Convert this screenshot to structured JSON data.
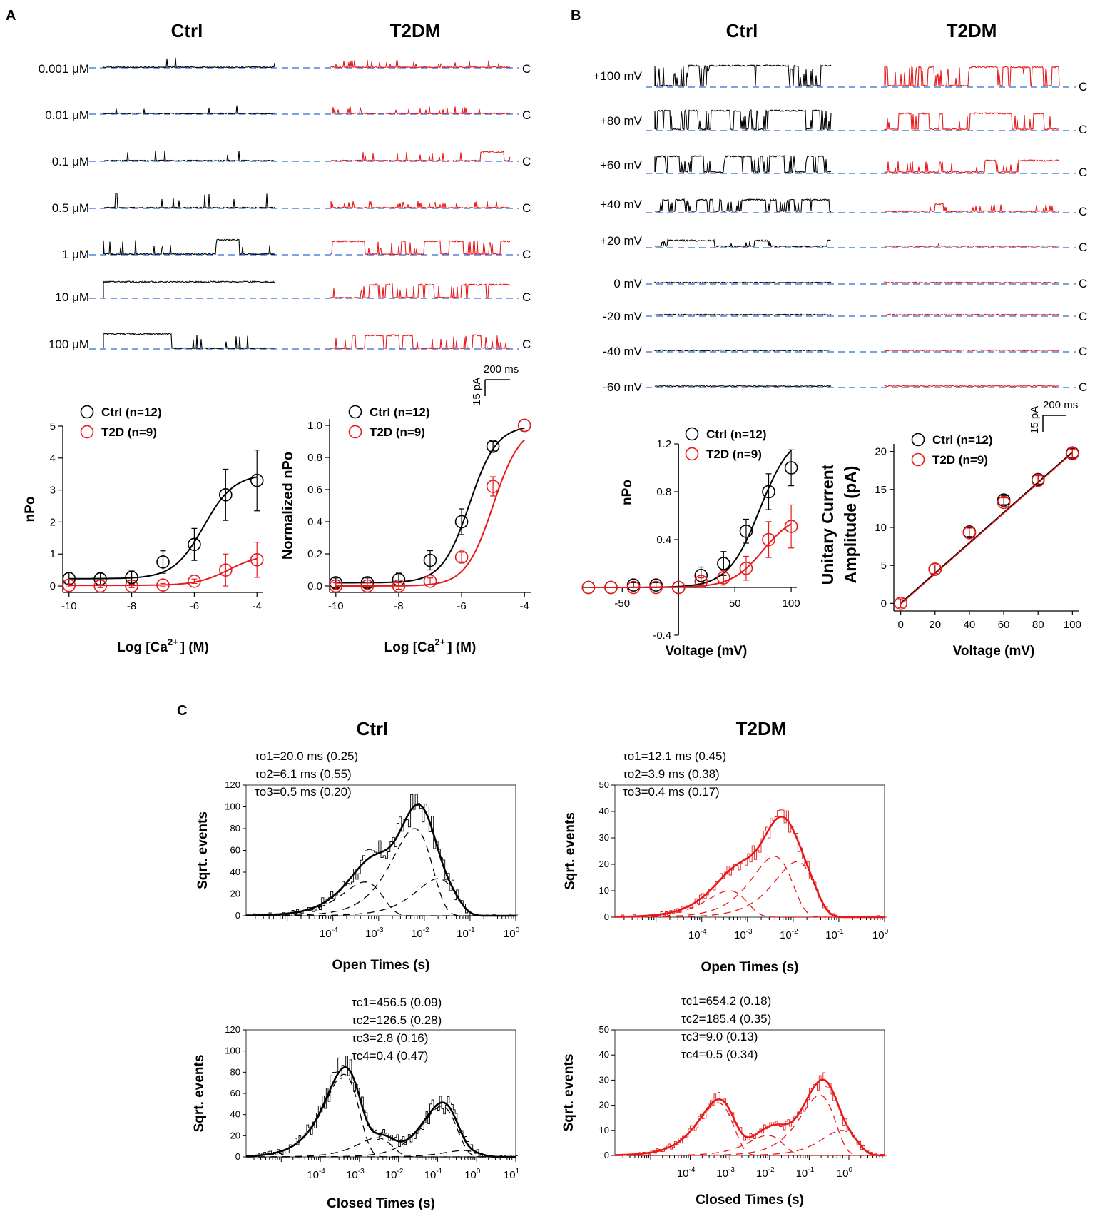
{
  "figure": {
    "panel_labels": [
      "A",
      "B",
      "C"
    ],
    "colors": {
      "ctrl": "#000000",
      "t2d": "#e8191b",
      "baseline": "#2f6ad8"
    },
    "closed_marker": "C"
  },
  "panelA": {
    "col_titles": [
      "Ctrl",
      "T2DM"
    ],
    "trace_labels": [
      "0.001  μM",
      "0.01  μM",
      "0.1  μM",
      "0.5  μM",
      "1  μM",
      "10  μM",
      "100  μM"
    ],
    "scale_bar": {
      "current": "15 pA",
      "time": "200 ms"
    }
  },
  "panelB": {
    "col_titles": [
      "Ctrl",
      "T2DM"
    ],
    "trace_labels": [
      "+100 mV",
      "+80 mV",
      "+60 mV",
      "+40 mV",
      "+20 mV",
      "0 mV",
      "-20 mV",
      "-40 mV",
      "-60 mV"
    ],
    "scale_bar": {
      "current": "15 pA",
      "time": "200 ms"
    }
  },
  "panelC": {
    "col_titles": [
      "Ctrl",
      "T2DM"
    ],
    "ctrl_open_fit": [
      "τo1=20.0 ms (0.25)",
      "τo2=6.1 ms (0.55)",
      "τo3=0.5 ms (0.20)"
    ],
    "t2d_open_fit": [
      "τo1=12.1 ms (0.45)",
      "τo2=3.9 ms (0.38)",
      "τo3=0.4 ms (0.17)"
    ],
    "ctrl_closed_fit": [
      "τc1=456.5 (0.09)",
      "τc2=126.5 (0.28)",
      "τc3=2.8 (0.16)",
      "τc4=0.4 (0.47)"
    ],
    "t2d_closed_fit": [
      "τc1=654.2 (0.18)",
      "τc2=185.4 (0.35)",
      "τc3=9.0 (0.13)",
      "τc4=0.5 (0.34)"
    ]
  },
  "chart_data": [
    {
      "id": "A-nPo",
      "type": "scatter",
      "xlabel": "Log [Ca2+] (M)",
      "xlabel_main": "Log [Ca",
      "xlabel_sup": "2+",
      "xlabel_end": "] (M)",
      "ylabel": "nPo",
      "xlim": [
        -10.2,
        -3.8
      ],
      "ylim": [
        -0.2,
        5
      ],
      "xticks": [
        -10,
        -8,
        -6,
        -4
      ],
      "yticks": [
        0,
        1,
        2,
        3,
        4,
        5
      ],
      "legend": [
        "Ctrl (n=12)",
        "T2D (n=9)"
      ],
      "series": [
        {
          "name": "Ctrl (n=12)",
          "color": "#000000",
          "x": [
            -10,
            -9,
            -8,
            -7,
            -6,
            -5,
            -4
          ],
          "y": [
            0.23,
            0.22,
            0.27,
            0.75,
            1.3,
            2.85,
            3.3
          ],
          "err": [
            0.2,
            0.2,
            0.2,
            0.35,
            0.5,
            0.8,
            0.95
          ],
          "fit": {
            "bottom": 0.23,
            "top": 3.5,
            "ec50": -5.7,
            "hill": 0.9
          }
        },
        {
          "name": "T2D (n=9)",
          "color": "#e8191b",
          "x": [
            -10,
            -9,
            -8,
            -7,
            -6,
            -5,
            -4
          ],
          "y": [
            0.02,
            0.0,
            0.0,
            0.03,
            0.15,
            0.5,
            0.82
          ],
          "err": [
            0.05,
            0.05,
            0.05,
            0.05,
            0.07,
            0.5,
            0.55
          ],
          "fit": {
            "bottom": 0.02,
            "top": 1.0,
            "ec50": -4.9,
            "hill": 0.85
          }
        }
      ]
    },
    {
      "id": "A-norm",
      "type": "scatter",
      "xlabel": "Log [Ca2+] (M)",
      "xlabel_main": "Log [Ca",
      "xlabel_sup": "2+",
      "xlabel_end": "] (M)",
      "ylabel": "Normalized nPo",
      "xlim": [
        -10.2,
        -3.8
      ],
      "ylim": [
        -0.04,
        1.04
      ],
      "xticks": [
        -10,
        -8,
        -6,
        -4
      ],
      "yticks": [
        0.0,
        0.2,
        0.4,
        0.6,
        0.8,
        1.0
      ],
      "ytick_labels": [
        "0.0",
        "0.2",
        "0.4",
        "0.6",
        "0.8",
        "1.0"
      ],
      "legend": [
        "Ctrl (n=12)",
        "T2D (n=9)"
      ],
      "series": [
        {
          "name": "Ctrl (n=12)",
          "color": "#000000",
          "x": [
            -10,
            -9,
            -8,
            -7,
            -6,
            -5,
            -4
          ],
          "y": [
            0.02,
            0.02,
            0.04,
            0.16,
            0.4,
            0.87,
            1.0
          ],
          "err": [
            0.03,
            0.03,
            0.04,
            0.06,
            0.08,
            0.03,
            0.0
          ],
          "fit": {
            "bottom": 0.02,
            "top": 1.0,
            "ec50": -5.75,
            "hill": 1.0
          }
        },
        {
          "name": "T2D (n=9)",
          "color": "#e8191b",
          "x": [
            -10,
            -9,
            -8,
            -7,
            -6,
            -5,
            -4
          ],
          "y": [
            0.0,
            0.0,
            0.0,
            0.03,
            0.18,
            0.62,
            1.0
          ],
          "err": [
            0.02,
            0.02,
            0.02,
            0.02,
            0.03,
            0.06,
            0.0
          ],
          "fit": {
            "bottom": 0.0,
            "top": 1.0,
            "ec50": -5.0,
            "hill": 1.0
          }
        }
      ]
    },
    {
      "id": "B-nPo",
      "type": "scatter",
      "xlabel": "Voltage (mV)",
      "ylabel": "nPo",
      "xlim": [
        -85,
        105
      ],
      "ylim": [
        -0.4,
        1.2
      ],
      "xticks": [
        -50,
        50,
        100
      ],
      "yticks": [
        -0.4,
        0.4,
        0.8,
        1.2
      ],
      "ytick_labels": [
        "-0.4",
        "0.4",
        "0.8",
        "1.2"
      ],
      "legend": [
        "Ctrl (n=12)",
        "T2D (n=9)"
      ],
      "series": [
        {
          "name": "Ctrl (n=12)",
          "color": "#000000",
          "x": [
            -80,
            -60,
            -40,
            -20,
            0,
            20,
            40,
            60,
            80,
            100
          ],
          "y": [
            0.0,
            0.0,
            0.02,
            0.02,
            0.0,
            0.1,
            0.2,
            0.47,
            0.8,
            1.0
          ],
          "err": [
            0,
            0,
            0.02,
            0.02,
            0,
            0.07,
            0.1,
            0.1,
            0.15,
            0.15
          ],
          "fit": {
            "bottom": 0.0,
            "top": 1.3,
            "v50": 72,
            "k": 14
          }
        },
        {
          "name": "T2D (n=9)",
          "color": "#e8191b",
          "x": [
            -80,
            -60,
            -40,
            -20,
            0,
            20,
            40,
            60,
            80,
            100
          ],
          "y": [
            0.0,
            0.0,
            0.0,
            0.0,
            0.0,
            0.05,
            0.08,
            0.16,
            0.4,
            0.51
          ],
          "err": [
            0,
            0,
            0,
            0,
            0,
            0.03,
            0.06,
            0.1,
            0.15,
            0.18
          ],
          "fit": {
            "bottom": 0.0,
            "top": 0.62,
            "v50": 75,
            "k": 14
          }
        }
      ]
    },
    {
      "id": "B-unitary",
      "type": "scatter",
      "xlabel": "Voltage (mV)",
      "ylabel": "Unitary Current",
      "ylabel2": "Amplitude (pA)",
      "xlim": [
        -4,
        104
      ],
      "ylim": [
        -1,
        21
      ],
      "xticks": [
        0,
        20,
        40,
        60,
        80,
        100
      ],
      "yticks": [
        0,
        5,
        10,
        15,
        20
      ],
      "legend": [
        "Ctrl (n=12)",
        "T2D (n=9)"
      ],
      "series": [
        {
          "name": "Ctrl (n=12)",
          "color": "#000000",
          "x": [
            20,
            40,
            60,
            80,
            100
          ],
          "y": [
            4.5,
            9.4,
            13.6,
            16.3,
            19.8
          ]
        },
        {
          "name": "T2D (n=9)",
          "color": "#e8191b",
          "x": [
            0,
            20,
            40,
            60,
            80,
            100
          ],
          "y": [
            0.0,
            4.5,
            9.3,
            13.3,
            16.2,
            19.7
          ]
        }
      ],
      "fit_line": {
        "x": [
          0,
          100
        ],
        "y": [
          0,
          19.9
        ]
      }
    },
    {
      "id": "C-ctrl-open",
      "type": "histogram",
      "xlabel": "Open Times (s)",
      "ylabel": "Sqrt. events",
      "xlim_log10": [
        -5.9,
        0
      ],
      "ylim": [
        0,
        120
      ],
      "xticks_log10": [
        -4,
        -3,
        -2,
        -1,
        0
      ],
      "yticks": [
        0,
        20,
        40,
        60,
        80,
        100,
        120
      ],
      "color": "#000000",
      "components": [
        {
          "tau_s": 0.0005,
          "amp": 31
        },
        {
          "tau_s": 0.0061,
          "amp": 80
        },
        {
          "tau_s": 0.02,
          "amp": 34
        }
      ],
      "noise_seed": 1
    },
    {
      "id": "C-t2d-open",
      "type": "histogram",
      "xlabel": "Open Times (s)",
      "ylabel": "Sqrt. events",
      "xlim_log10": [
        -5.9,
        0
      ],
      "ylim": [
        0,
        50
      ],
      "xticks_log10": [
        -4,
        -3,
        -2,
        -1,
        0
      ],
      "yticks": [
        0,
        10,
        20,
        30,
        40,
        50
      ],
      "color": "#e8191b",
      "components": [
        {
          "tau_s": 0.0004,
          "amp": 10
        },
        {
          "tau_s": 0.0039,
          "amp": 23
        },
        {
          "tau_s": 0.0121,
          "amp": 21
        }
      ],
      "noise_seed": 2
    },
    {
      "id": "C-ctrl-closed",
      "type": "histogram",
      "xlabel": "Closed Times (s)",
      "ylabel": "Sqrt. events",
      "xlim_log10": [
        -5.9,
        1
      ],
      "ylim": [
        0,
        120
      ],
      "xticks_log10": [
        -4,
        -3,
        -2,
        -1,
        0,
        1
      ],
      "yticks": [
        0,
        20,
        40,
        60,
        80,
        100,
        120
      ],
      "color": "#000000",
      "components": [
        {
          "tau_s": 0.0004,
          "amp": 78
        },
        {
          "tau_s": 0.0028,
          "amp": 18
        },
        {
          "tau_s": 0.1265,
          "amp": 48
        },
        {
          "tau_s": 0.4565,
          "amp": 6
        }
      ],
      "noise_seed": 3
    },
    {
      "id": "C-t2d-closed",
      "type": "histogram",
      "xlabel": "Closed Times (s)",
      "ylabel": "Sqrt. events",
      "xlim_log10": [
        -5.9,
        0.9
      ],
      "ylim": [
        0,
        50
      ],
      "xticks_log10": [
        -4,
        -3,
        -2,
        -1,
        0
      ],
      "yticks": [
        0,
        10,
        20,
        30,
        40,
        50
      ],
      "color": "#e8191b",
      "components": [
        {
          "tau_s": 0.0005,
          "amp": 21
        },
        {
          "tau_s": 0.009,
          "amp": 8
        },
        {
          "tau_s": 0.1854,
          "amp": 24
        },
        {
          "tau_s": 0.6542,
          "amp": 10
        }
      ],
      "noise_seed": 4
    }
  ]
}
